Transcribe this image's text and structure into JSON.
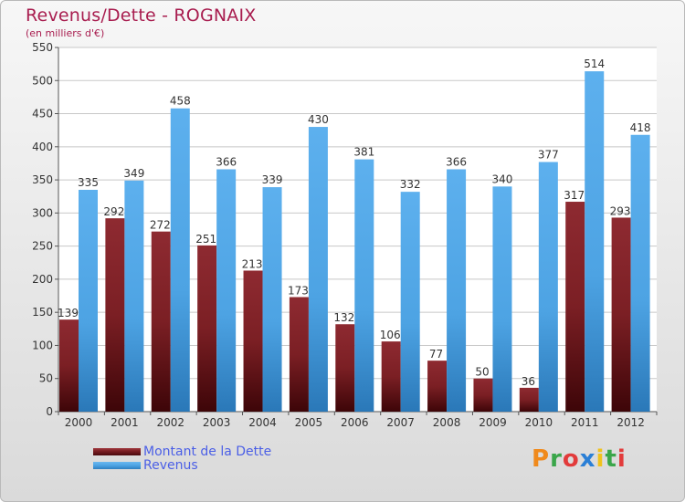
{
  "title": "Revenus/Dette - ROGNAIX",
  "subtitle": "(en milliers d'€)",
  "logo": {
    "text": "Proxiti",
    "colors": [
      "#f08a1c",
      "#3aa64a",
      "#e23b3b",
      "#2a7fd6",
      "#f0c21c",
      "#3aa64a",
      "#e23b3b"
    ]
  },
  "colors": {
    "dette": "#7b1f24",
    "revenus": "#4da3e3",
    "axis_text": "#333333",
    "grid": "#c8c8c8"
  },
  "chart_data": {
    "type": "bar",
    "categories": [
      "2000",
      "2001",
      "2002",
      "2003",
      "2004",
      "2005",
      "2006",
      "2007",
      "2008",
      "2009",
      "2010",
      "2011",
      "2012"
    ],
    "series": [
      {
        "name": "Montant de la Dette",
        "values": [
          139,
          292,
          272,
          251,
          213,
          173,
          132,
          106,
          77,
          50,
          36,
          317,
          293
        ]
      },
      {
        "name": "Revenus",
        "values": [
          335,
          349,
          458,
          366,
          339,
          430,
          381,
          332,
          366,
          340,
          377,
          514,
          418
        ]
      }
    ],
    "ylim": [
      0,
      550
    ],
    "yticks": [
      "0",
      "50",
      "100",
      "150",
      "200",
      "250",
      "300",
      "350",
      "400",
      "450",
      "500",
      "550"
    ],
    "grid": true,
    "legend": "bottom-left"
  }
}
